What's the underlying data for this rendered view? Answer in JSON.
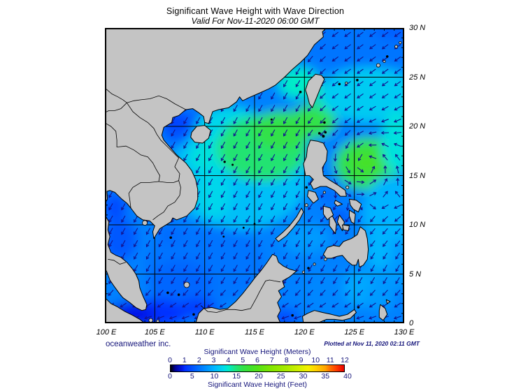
{
  "title": "Significant Wave Height with Wave Direction",
  "subtitle": "Valid For Nov-11-2020 06:00 GMT",
  "credit": "oceanweather inc.",
  "plotted_at": "Plotted at Nov 11, 2020 02:11 GMT",
  "axes": {
    "lon_ticks": [
      "100 E",
      "105 E",
      "110 E",
      "115 E",
      "120 E",
      "125 E",
      "130 E"
    ],
    "lat_ticks": [
      "30 N",
      "25 N",
      "20 N",
      "15 N",
      "10 N",
      "5 N",
      "0"
    ]
  },
  "legend": {
    "meters_title": "Significant Wave Height (Meters)",
    "feet_title": "Significant Wave Height (Feet)",
    "meters_ticks": [
      0,
      1,
      2,
      3,
      4,
      5,
      6,
      7,
      8,
      9,
      10,
      11,
      12
    ],
    "feet_ticks": [
      0,
      5,
      10,
      15,
      20,
      25,
      30,
      35,
      40
    ]
  },
  "chart_data": {
    "type": "heatmap",
    "subtype": "geographic wave-height field with direction arrows",
    "region": "South China Sea, Philippines and Western Pacific",
    "lon_range": [
      100,
      130
    ],
    "lat_range": [
      0,
      30
    ],
    "grid_spacing_deg": 5,
    "tick_spacing_deg": 1,
    "land_color": "#c4c4c4",
    "colormap_meters_to_color": [
      {
        "m": 0,
        "color": "#000000"
      },
      {
        "m": 0.3,
        "color": "#000090"
      },
      {
        "m": 0.8,
        "color": "#0018e8"
      },
      {
        "m": 1,
        "color": "#0030ff"
      },
      {
        "m": 2,
        "color": "#0074ff"
      },
      {
        "m": 3,
        "color": "#00b4ff"
      },
      {
        "m": 3.7,
        "color": "#00dce8"
      },
      {
        "m": 4,
        "color": "#00ecc8"
      },
      {
        "m": 4.5,
        "color": "#20e47c"
      },
      {
        "m": 5,
        "color": "#32e148"
      },
      {
        "m": 5.5,
        "color": "#40e12e"
      },
      {
        "m": 6,
        "color": "#52e218"
      },
      {
        "m": 7,
        "color": "#84e600"
      },
      {
        "m": 8,
        "color": "#a8ea00"
      },
      {
        "m": 9,
        "color": "#d8f000"
      },
      {
        "m": 9.5,
        "color": "#f4f000"
      },
      {
        "m": 10,
        "color": "#ffd400"
      },
      {
        "m": 10.7,
        "color": "#ffa400"
      },
      {
        "m": 11,
        "color": "#ff7400"
      },
      {
        "m": 11.5,
        "color": "#ff3a00"
      },
      {
        "m": 12,
        "color": "#e80000"
      }
    ],
    "base_wave_height_m": 2.2,
    "wave_height_regions": [
      {
        "lon": 126.0,
        "lat": 28.8,
        "rx": 7.0,
        "ry": 3.2,
        "m": 2.0
      },
      {
        "lon": 129.5,
        "lat": 29.7,
        "rx": 2.5,
        "ry": 1.0,
        "m": 1.7
      },
      {
        "lon": 107.6,
        "lat": 19.9,
        "rx": 2.0,
        "ry": 1.7,
        "m": 1.5
      },
      {
        "lon": 106.9,
        "lat": 20.6,
        "rx": 1.2,
        "ry": 0.8,
        "m": 1.2
      },
      {
        "lon": 111.3,
        "lat": 21.2,
        "rx": 2.6,
        "ry": 0.9,
        "m": 1.7
      },
      {
        "lon": 113.5,
        "lat": 15.0,
        "rx": 7.0,
        "ry": 5.5,
        "m": 3.2
      },
      {
        "lon": 112.5,
        "lat": 19.5,
        "rx": 3.5,
        "ry": 2.5,
        "m": 3.6
      },
      {
        "lon": 110.6,
        "lat": 16.9,
        "rx": 2.2,
        "ry": 1.8,
        "m": 3.8
      },
      {
        "lon": 110.9,
        "lat": 13.3,
        "rx": 1.7,
        "ry": 2.6,
        "m": 3.6
      },
      {
        "lon": 115.8,
        "lat": 17.8,
        "rx": 4.6,
        "ry": 3.4,
        "m": 4.6
      },
      {
        "lon": 117.6,
        "lat": 19.6,
        "rx": 2.8,
        "ry": 2.0,
        "m": 5.0
      },
      {
        "lon": 120.8,
        "lat": 20.5,
        "rx": 2.4,
        "ry": 1.7,
        "m": 5.0
      },
      {
        "lon": 119.4,
        "lat": 24.4,
        "rx": 2.0,
        "ry": 1.6,
        "m": 4.0
      },
      {
        "lon": 123.3,
        "lat": 22.9,
        "rx": 2.6,
        "ry": 1.8,
        "m": 4.4
      },
      {
        "lon": 126.5,
        "lat": 23.2,
        "rx": 5.0,
        "ry": 2.8,
        "m": 3.4
      },
      {
        "lon": 126.4,
        "lat": 16.2,
        "rx": 3.4,
        "ry": 2.7,
        "m": 5.0
      },
      {
        "lon": 126.2,
        "lat": 16.3,
        "rx": 1.5,
        "ry": 1.2,
        "m": 5.6
      },
      {
        "lon": 129.3,
        "lat": 18.5,
        "rx": 1.6,
        "ry": 3.2,
        "m": 3.8
      },
      {
        "lon": 128.8,
        "lat": 11.0,
        "rx": 3.0,
        "ry": 4.0,
        "m": 3.0
      },
      {
        "lon": 129.0,
        "lat": 6.0,
        "rx": 2.2,
        "ry": 2.6,
        "m": 2.6
      },
      {
        "lon": 127.4,
        "lat": 7.6,
        "rx": 1.4,
        "ry": 2.2,
        "m": 3.0
      },
      {
        "lon": 110.0,
        "lat": 6.0,
        "rx": 6.0,
        "ry": 4.0,
        "m": 2.0
      },
      {
        "lon": 107.5,
        "lat": 4.0,
        "rx": 3.0,
        "ry": 2.5,
        "m": 1.8
      },
      {
        "lon": 106.5,
        "lat": 9.0,
        "rx": 1.5,
        "ry": 1.2,
        "m": 1.9
      },
      {
        "lon": 101.5,
        "lat": 8.5,
        "rx": 1.8,
        "ry": 2.2,
        "m": 1.6
      },
      {
        "lon": 101.0,
        "lat": 11.8,
        "rx": 1.2,
        "ry": 1.5,
        "m": 1.4
      },
      {
        "lon": 104.5,
        "lat": 1.0,
        "rx": 4.0,
        "ry": 1.5,
        "m": 1.0
      },
      {
        "lon": 102.5,
        "lat": 0.8,
        "rx": 2.5,
        "ry": 1.2,
        "m": 0.8
      },
      {
        "lon": 109.3,
        "lat": 1.5,
        "rx": 2.0,
        "ry": 1.0,
        "m": 1.2
      },
      {
        "lon": 120.1,
        "lat": 8.6,
        "rx": 2.4,
        "ry": 1.6,
        "m": 2.6
      },
      {
        "lon": 122.8,
        "lat": 3.2,
        "rx": 3.0,
        "ry": 2.2,
        "m": 2.3
      },
      {
        "lon": 125.6,
        "lat": 3.6,
        "rx": 1.7,
        "ry": 1.9,
        "m": 2.8
      },
      {
        "lon": 127.6,
        "lat": 2.6,
        "rx": 1.4,
        "ry": 1.4,
        "m": 2.6
      },
      {
        "lon": 117.9,
        "lat": 0.6,
        "rx": 1.6,
        "ry": 0.9,
        "m": 1.4
      },
      {
        "lon": 123.5,
        "lat": 10.8,
        "rx": 1.2,
        "ry": 0.8,
        "m": 1.6
      },
      {
        "lon": 122.4,
        "lat": 12.9,
        "rx": 1.0,
        "ry": 0.7,
        "m": 1.8
      }
    ],
    "arrow_field": {
      "color": "#12128e",
      "spacing_deg": 1.25,
      "ambient_flow": "northeast monsoon, arrows point SW over most of the basin, W near the equator",
      "cyclone_center": {
        "lon": 126.3,
        "lat": 16.1,
        "rotation": "counterclockwise"
      }
    }
  }
}
